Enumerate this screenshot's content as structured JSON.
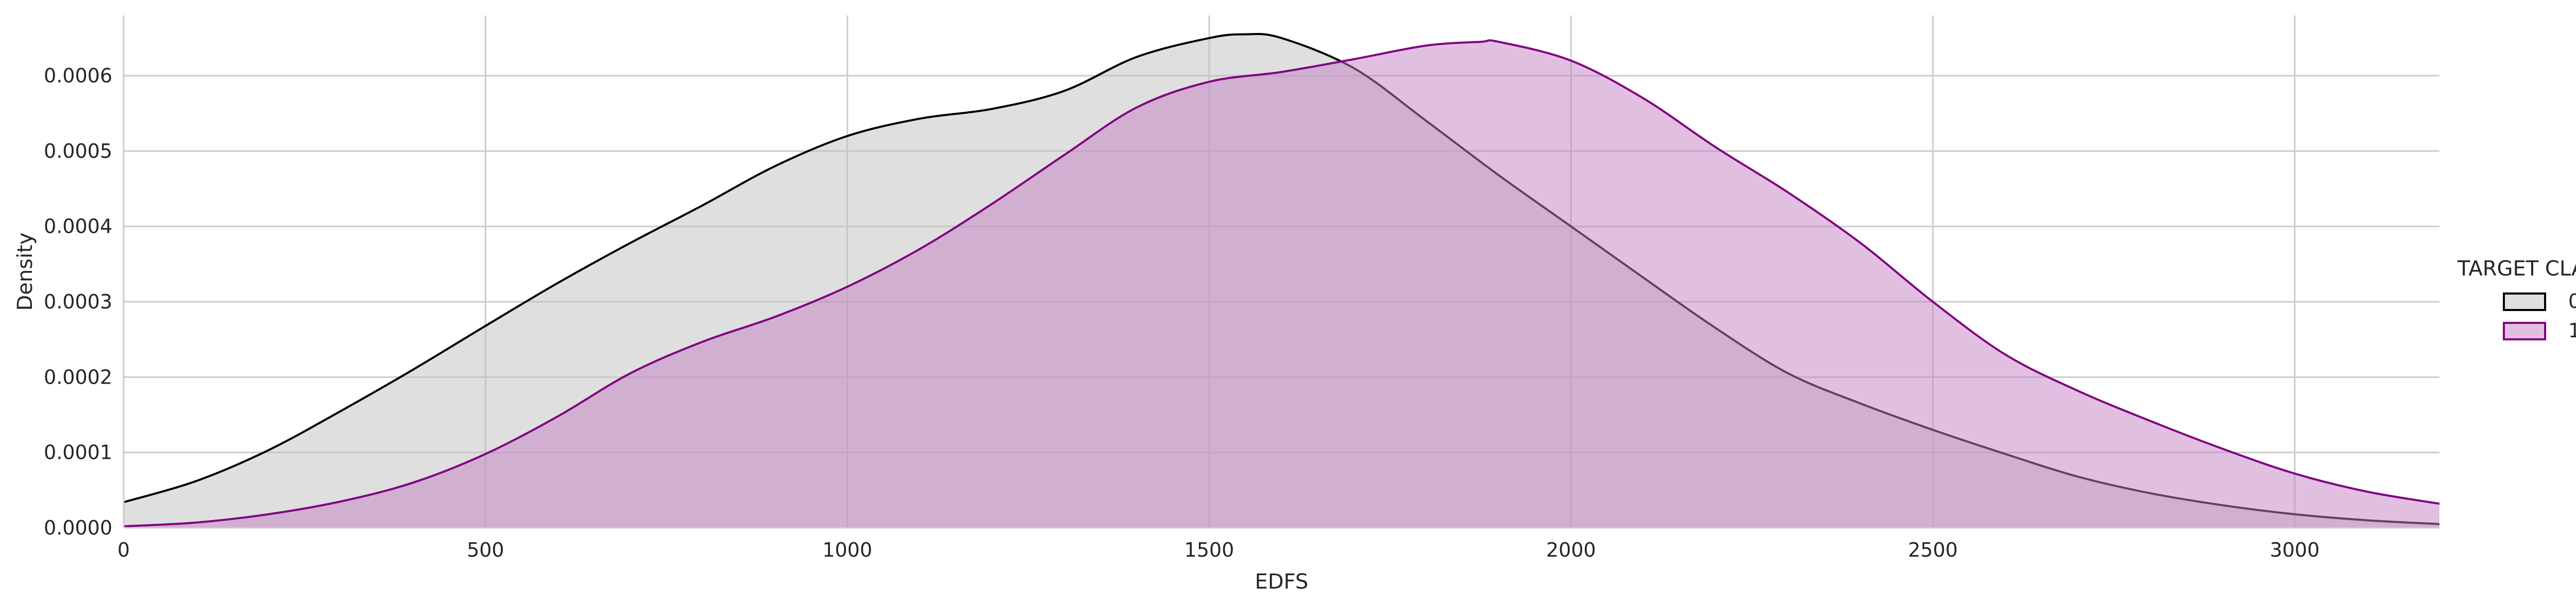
{
  "chart_data": {
    "type": "area",
    "title": "",
    "xlabel": "EDFS",
    "ylabel": "Density",
    "xlim": [
      0,
      3200
    ],
    "ylim": [
      0,
      0.00068
    ],
    "grid": true,
    "x_ticks": [
      0,
      500,
      1000,
      1500,
      2000,
      2500,
      3000
    ],
    "x_tick_labels": [
      "0",
      "500",
      "1000",
      "1500",
      "2000",
      "2500",
      "3000"
    ],
    "y_ticks": [
      0,
      0.0001,
      0.0002,
      0.0003,
      0.0004,
      0.0005,
      0.0006
    ],
    "y_tick_labels": [
      "0.0000",
      "0.0001",
      "0.0002",
      "0.0003",
      "0.0004",
      "0.0005",
      "0.0006"
    ],
    "legend": {
      "title": "TARGET CLASS",
      "position": "right"
    },
    "series": [
      {
        "name": "0",
        "fill": "#bfbfbf",
        "stroke": "#000000",
        "x": [
          0,
          100,
          200,
          300,
          400,
          500,
          600,
          700,
          800,
          900,
          1000,
          1100,
          1200,
          1300,
          1400,
          1500,
          1550,
          1600,
          1700,
          1800,
          1900,
          2000,
          2100,
          2200,
          2300,
          2400,
          2500,
          2600,
          2700,
          2800,
          2900,
          3000,
          3100,
          3200
        ],
        "y": [
          3.4e-05,
          6.2e-05,
          0.000103,
          0.000155,
          0.00021,
          0.000268,
          0.000325,
          0.000378,
          0.000428,
          0.00048,
          0.00052,
          0.000543,
          0.000556,
          0.00058,
          0.000625,
          0.00065,
          0.000655,
          0.00065,
          0.00061,
          0.00054,
          0.000468,
          0.0004,
          0.000332,
          0.000265,
          0.000205,
          0.000165,
          0.00013,
          9.8e-05,
          6.8e-05,
          4.6e-05,
          3e-05,
          1.8e-05,
          1e-05,
          5e-06
        ]
      },
      {
        "name": "1",
        "fill": "#c37fc3",
        "stroke": "#800080",
        "x": [
          0,
          100,
          200,
          300,
          400,
          500,
          600,
          700,
          800,
          900,
          1000,
          1100,
          1200,
          1300,
          1400,
          1500,
          1600,
          1700,
          1800,
          1875,
          1900,
          2000,
          2100,
          2200,
          2300,
          2400,
          2500,
          2600,
          2700,
          2800,
          2900,
          3000,
          3100,
          3200
        ],
        "y": [
          2e-06,
          7e-06,
          1.8e-05,
          3.5e-05,
          6e-05,
          9.8e-05,
          0.000148,
          0.000205,
          0.000247,
          0.00028,
          0.00032,
          0.00037,
          0.00043,
          0.000495,
          0.000558,
          0.000592,
          0.000605,
          0.000622,
          0.00064,
          0.000645,
          0.000645,
          0.00062,
          0.00057,
          0.000505,
          0.000445,
          0.000378,
          0.0003,
          0.00023,
          0.000182,
          0.000142,
          0.000105,
          7.2e-05,
          4.8e-05,
          3.2e-05
        ]
      }
    ]
  }
}
